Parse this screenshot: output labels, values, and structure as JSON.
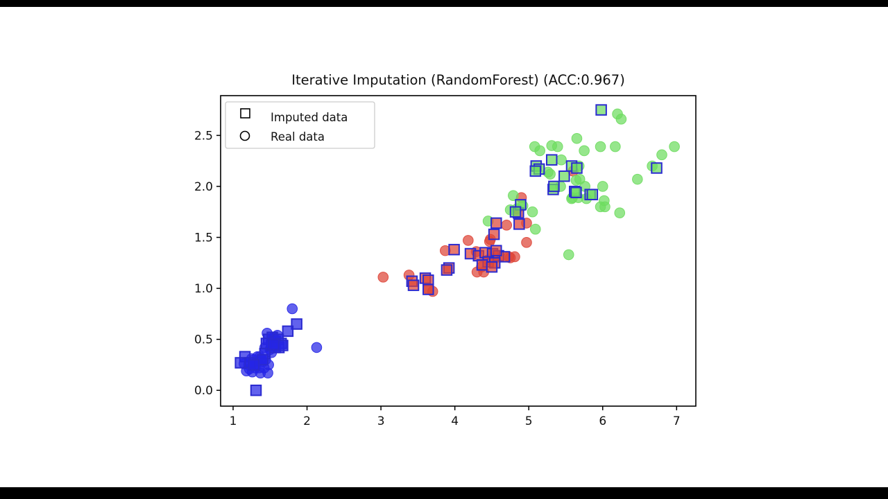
{
  "chart_data": {
    "type": "scatter",
    "title": "Iterative Imputation (RandomForest) (ACC:0.967)",
    "xlabel": "",
    "ylabel": "",
    "xlim": [
      0.831,
      7.26
    ],
    "ylim": [
      -0.155,
      2.89
    ],
    "x_ticks": [
      1,
      2,
      3,
      4,
      5,
      6,
      7
    ],
    "y_ticks": [
      0.0,
      0.5,
      1.0,
      1.5,
      2.0,
      2.5
    ],
    "grid": false,
    "legend": {
      "position": "upper left",
      "items": [
        {
          "marker": "square",
          "label": "Imputed data"
        },
        {
          "marker": "circle",
          "label": "Real data"
        }
      ]
    },
    "colors": {
      "class_blue": "#2525e6",
      "class_red": "#de4538",
      "class_green": "#6edc5f",
      "imputed_edge": "#2a2ad0",
      "axis": "#000000",
      "legend_border": "#cccccc"
    },
    "series": [
      {
        "name": "class-blue-real",
        "marker": "circle",
        "color": "class_blue",
        "points": [
          [
            1.8,
            0.8
          ],
          [
            2.13,
            0.42
          ],
          [
            1.46,
            0.56
          ],
          [
            1.18,
            0.19
          ],
          [
            1.26,
            0.18
          ],
          [
            1.37,
            0.17
          ],
          [
            1.47,
            0.17
          ],
          [
            1.21,
            0.25
          ],
          [
            1.15,
            0.26
          ],
          [
            1.3,
            0.22
          ],
          [
            1.42,
            0.22
          ],
          [
            1.28,
            0.3
          ],
          [
            1.33,
            0.28
          ],
          [
            1.4,
            0.28
          ],
          [
            1.25,
            0.31
          ],
          [
            1.44,
            0.3
          ],
          [
            1.36,
            0.33
          ],
          [
            1.48,
            0.25
          ],
          [
            1.43,
            0.42
          ],
          [
            1.5,
            0.4
          ],
          [
            1.55,
            0.52
          ],
          [
            1.6,
            0.54
          ],
          [
            1.52,
            0.37
          ],
          [
            1.35,
            0.22
          ],
          [
            1.22,
            0.21
          ],
          [
            1.33,
            0.33
          ],
          [
            1.38,
            0.31
          ],
          [
            1.3,
            0.26
          ]
        ]
      },
      {
        "name": "class-red-real",
        "marker": "circle",
        "color": "class_red",
        "points": [
          [
            3.03,
            1.11
          ],
          [
            3.38,
            1.13
          ],
          [
            3.64,
            0.99
          ],
          [
            3.7,
            0.97
          ],
          [
            4.3,
            1.16
          ],
          [
            4.39,
            1.16
          ],
          [
            3.87,
            1.37
          ],
          [
            4.18,
            1.47
          ],
          [
            4.29,
            1.36
          ],
          [
            4.75,
            1.3
          ],
          [
            4.81,
            1.31
          ],
          [
            4.47,
            1.46
          ],
          [
            4.97,
            1.45
          ],
          [
            4.97,
            1.64
          ],
          [
            4.7,
            1.62
          ],
          [
            4.48,
            1.48
          ],
          [
            4.55,
            1.3
          ],
          [
            4.45,
            1.28
          ],
          [
            4.36,
            1.21
          ],
          [
            4.9,
            1.89
          ],
          [
            5.6,
            2.15
          ],
          [
            4.73,
            1.31
          ]
        ]
      },
      {
        "name": "class-green-real",
        "marker": "circle",
        "color": "class_green",
        "points": [
          [
            4.79,
            1.91
          ],
          [
            4.75,
            1.77
          ],
          [
            4.84,
            1.78
          ],
          [
            5.05,
            1.75
          ],
          [
            4.45,
            1.66
          ],
          [
            5.09,
            1.58
          ],
          [
            5.54,
            1.33
          ],
          [
            4.92,
            1.81
          ],
          [
            5.58,
            1.88
          ],
          [
            5.67,
            1.89
          ],
          [
            5.97,
            1.8
          ],
          [
            5.43,
            2.0
          ],
          [
            5.64,
            2.06
          ],
          [
            5.69,
            2.07
          ],
          [
            5.76,
            2.0
          ],
          [
            6.0,
            2.0
          ],
          [
            6.02,
            1.86
          ],
          [
            6.03,
            1.8
          ],
          [
            6.23,
            1.74
          ],
          [
            5.59,
            1.89
          ],
          [
            5.78,
            1.88
          ],
          [
            5.29,
            2.12
          ],
          [
            5.26,
            2.14
          ],
          [
            5.44,
            2.26
          ],
          [
            5.68,
            2.2
          ],
          [
            5.08,
            2.39
          ],
          [
            5.15,
            2.35
          ],
          [
            5.31,
            2.4
          ],
          [
            5.39,
            2.39
          ],
          [
            5.65,
            2.47
          ],
          [
            5.75,
            2.35
          ],
          [
            5.97,
            2.39
          ],
          [
            6.17,
            2.39
          ],
          [
            6.47,
            2.07
          ],
          [
            6.67,
            2.2
          ],
          [
            6.8,
            2.31
          ],
          [
            6.97,
            2.39
          ],
          [
            6.2,
            2.71
          ],
          [
            6.25,
            2.66
          ]
        ]
      },
      {
        "name": "class-blue-imputed",
        "marker": "square",
        "color": "class_blue",
        "points": [
          [
            1.31,
            0.0
          ],
          [
            1.16,
            0.33
          ],
          [
            1.1,
            0.27
          ],
          [
            1.23,
            0.27
          ],
          [
            1.43,
            0.36
          ],
          [
            1.86,
            0.65
          ],
          [
            1.74,
            0.58
          ],
          [
            1.48,
            0.5
          ],
          [
            1.53,
            0.52
          ],
          [
            1.57,
            0.48
          ],
          [
            1.61,
            0.5
          ],
          [
            1.65,
            0.46
          ],
          [
            1.52,
            0.44
          ],
          [
            1.57,
            0.42
          ],
          [
            1.62,
            0.42
          ],
          [
            1.67,
            0.44
          ],
          [
            1.45,
            0.46
          ],
          [
            1.55,
            0.45
          ],
          [
            1.4,
            0.3
          ],
          [
            1.28,
            0.25
          ]
        ]
      },
      {
        "name": "class-red-imputed",
        "marker": "square",
        "color": "class_red",
        "points": [
          [
            3.42,
            1.07
          ],
          [
            3.44,
            1.03
          ],
          [
            3.6,
            1.1
          ],
          [
            3.64,
            1.08
          ],
          [
            3.64,
            0.99
          ],
          [
            3.92,
            1.2
          ],
          [
            3.89,
            1.18
          ],
          [
            3.99,
            1.38
          ],
          [
            4.21,
            1.34
          ],
          [
            4.32,
            1.32
          ],
          [
            4.41,
            1.35
          ],
          [
            4.51,
            1.34
          ],
          [
            4.59,
            1.32
          ],
          [
            4.67,
            1.31
          ],
          [
            4.45,
            1.26
          ],
          [
            4.54,
            1.25
          ],
          [
            4.37,
            1.23
          ],
          [
            4.5,
            1.21
          ],
          [
            4.56,
            1.37
          ],
          [
            4.53,
            1.53
          ],
          [
            4.56,
            1.64
          ],
          [
            4.87,
            1.63
          ],
          [
            4.86,
            1.74
          ]
        ]
      },
      {
        "name": "class-green-imputed",
        "marker": "square",
        "color": "class_green",
        "points": [
          [
            5.98,
            2.75
          ],
          [
            5.33,
            1.97
          ],
          [
            5.62,
            1.95
          ],
          [
            5.83,
            1.92
          ],
          [
            5.34,
            2.0
          ],
          [
            5.64,
            1.94
          ],
          [
            5.86,
            1.92
          ],
          [
            5.1,
            2.2
          ],
          [
            5.14,
            2.17
          ],
          [
            5.09,
            2.15
          ],
          [
            5.31,
            2.26
          ],
          [
            5.58,
            2.2
          ],
          [
            5.65,
            2.18
          ],
          [
            5.48,
            2.1
          ],
          [
            6.73,
            2.18
          ],
          [
            4.89,
            1.82
          ],
          [
            4.82,
            1.75
          ]
        ]
      }
    ]
  }
}
